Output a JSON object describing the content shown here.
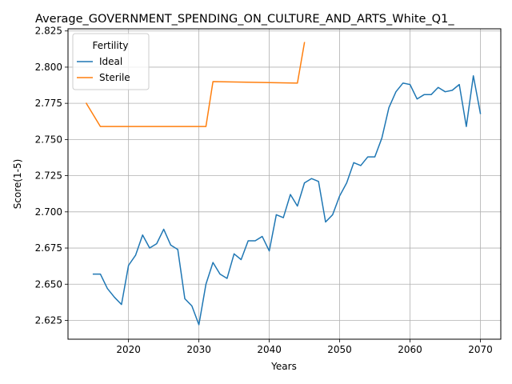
{
  "chart_data": {
    "type": "line",
    "title": "Average_GOVERNMENT_SPENDING_ON_CULTURE_AND_ARTS_White_Q1_",
    "xlabel": "Years",
    "ylabel": "Score(1-5)",
    "xlim": [
      2011.4,
      2072.9
    ],
    "ylim": [
      2.612,
      2.8265
    ],
    "xticks": [
      2020,
      2030,
      2040,
      2050,
      2060,
      2070
    ],
    "yticks": [
      2.625,
      2.65,
      2.675,
      2.7,
      2.725,
      2.75,
      2.775,
      2.8,
      2.825
    ],
    "ytick_labels": [
      "2.625",
      "2.650",
      "2.675",
      "2.700",
      "2.725",
      "2.750",
      "2.775",
      "2.800",
      "2.825"
    ],
    "grid": true,
    "legend": {
      "title": "Fertility",
      "placement": "top-left"
    },
    "series": [
      {
        "name": "Ideal",
        "color": "#1f77b4",
        "points": [
          [
            2015,
            2.657
          ],
          [
            2016,
            2.657
          ],
          [
            2017,
            2.647
          ],
          [
            2018,
            2.641
          ],
          [
            2019,
            2.636
          ],
          [
            2020,
            2.663
          ],
          [
            2021,
            2.67
          ],
          [
            2022,
            2.684
          ],
          [
            2023,
            2.675
          ],
          [
            2024,
            2.678
          ],
          [
            2025,
            2.688
          ],
          [
            2026,
            2.677
          ],
          [
            2027,
            2.674
          ],
          [
            2028,
            2.64
          ],
          [
            2029,
            2.635
          ],
          [
            2030,
            2.622
          ],
          [
            2031,
            2.65
          ],
          [
            2032,
            2.665
          ],
          [
            2033,
            2.657
          ],
          [
            2034,
            2.654
          ],
          [
            2035,
            2.671
          ],
          [
            2036,
            2.667
          ],
          [
            2037,
            2.68
          ],
          [
            2038,
            2.68
          ],
          [
            2039,
            2.683
          ],
          [
            2040,
            2.673
          ],
          [
            2041,
            2.698
          ],
          [
            2042,
            2.696
          ],
          [
            2043,
            2.712
          ],
          [
            2044,
            2.704
          ],
          [
            2045,
            2.72
          ],
          [
            2046,
            2.723
          ],
          [
            2047,
            2.721
          ],
          [
            2048,
            2.693
          ],
          [
            2049,
            2.698
          ],
          [
            2050,
            2.711
          ],
          [
            2051,
            2.72
          ],
          [
            2052,
            2.734
          ],
          [
            2053,
            2.732
          ],
          [
            2054,
            2.738
          ],
          [
            2055,
            2.738
          ],
          [
            2056,
            2.751
          ],
          [
            2057,
            2.772
          ],
          [
            2058,
            2.783
          ],
          [
            2059,
            2.789
          ],
          [
            2060,
            2.788
          ],
          [
            2061,
            2.778
          ],
          [
            2062,
            2.781
          ],
          [
            2063,
            2.781
          ],
          [
            2064,
            2.786
          ],
          [
            2065,
            2.783
          ],
          [
            2066,
            2.784
          ],
          [
            2067,
            2.788
          ],
          [
            2068,
            2.759
          ],
          [
            2069,
            2.794
          ],
          [
            2070,
            2.768
          ]
        ]
      },
      {
        "name": "Sterile",
        "color": "#ff7f0e",
        "points": [
          [
            2014,
            2.775
          ],
          [
            2015,
            2.767
          ],
          [
            2016,
            2.759
          ],
          [
            2031,
            2.759
          ],
          [
            2032,
            2.79
          ],
          [
            2044,
            2.789
          ],
          [
            2045,
            2.817
          ]
        ]
      }
    ]
  }
}
